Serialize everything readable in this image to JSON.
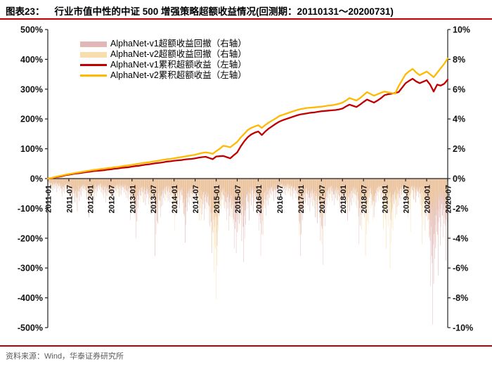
{
  "header": {
    "prefix": "图表23：",
    "title": "行业市值中性的中证 500 增强策略超额收益情况(回测期：20110131～20200731)"
  },
  "footer": {
    "source": "资料来源：Wind，华泰证券研究所"
  },
  "colors": {
    "accent_rule": "#c00000",
    "v1_line": "#c00000",
    "v2_line": "#ffb900",
    "v1_drawdown": "#c97c7c",
    "v2_drawdown": "#f2c36b",
    "axis": "#222222",
    "source_text": "#5a5a5a"
  },
  "chart_data": {
    "type": "combo_bar_line",
    "title": "行业市值中性的中证 500 增强策略超额收益情况(回测期：20110131～20200731)",
    "interval": "monthly",
    "start_month": "2011-01",
    "end_month": "2020-07",
    "grid": false,
    "legend_position": "upper-left-inside",
    "left_axis": {
      "label_format": "percent",
      "min": -500,
      "max": 500,
      "step": 100
    },
    "right_axis": {
      "label_format": "percent",
      "min": -10,
      "max": 10,
      "step": 2
    },
    "x_ticks": [
      "2011-01",
      "2011-07",
      "2012-01",
      "2012-07",
      "2013-01",
      "2013-07",
      "2014-01",
      "2014-07",
      "2015-01",
      "2015-07",
      "2016-01",
      "2016-07",
      "2017-01",
      "2017-07",
      "2018-01",
      "2018-07",
      "2019-01",
      "2019-07",
      "2020-01",
      "2020-07"
    ],
    "series": [
      {
        "name": "AlphaNet-v1超额收益回撤（右轴）",
        "type": "bar",
        "axis": "right",
        "color": "#c97c7c",
        "unit": "percent_drawdown_depth",
        "values": [
          0.6,
          0.8,
          0.7,
          0.9,
          1.2,
          1.0,
          1.1,
          1.8,
          2.2,
          1.5,
          1.2,
          1.4,
          2.6,
          1.5,
          1.2,
          1.0,
          1.3,
          1.6,
          1.9,
          1.4,
          1.2,
          1.1,
          1.3,
          1.5,
          2.8,
          4.0,
          2.0,
          1.6,
          1.8,
          2.4,
          2.2,
          5.2,
          2.6,
          1.8,
          1.5,
          1.6,
          2.2,
          1.8,
          2.0,
          4.3,
          2.2,
          1.8,
          1.6,
          2.0,
          2.4,
          2.8,
          3.2,
          5.0,
          4.5,
          2.5,
          2.0,
          2.8,
          3.5,
          4.7,
          5.0,
          4.2,
          5.6,
          2.8,
          1.8,
          2.2,
          3.5,
          5.2,
          2.5,
          1.8,
          1.5,
          1.3,
          1.2,
          1.0,
          1.1,
          1.2,
          1.4,
          1.8,
          5.2,
          2.8,
          1.8,
          2.2,
          2.6,
          3.0,
          5.8,
          3.2,
          1.8,
          1.5,
          1.8,
          2.0,
          2.4,
          2.8,
          2.2,
          1.8,
          2.0,
          4.4,
          2.6,
          2.2,
          1.8,
          2.6,
          1.6,
          1.4,
          1.8,
          2.2,
          2.8,
          2.4,
          1.8,
          1.5,
          1.6,
          2.0,
          1.4,
          1.6,
          1.8,
          1.6,
          3.5,
          7.2,
          9.8,
          6.5,
          4.5,
          5.5,
          5.0
        ]
      },
      {
        "name": "AlphaNet-v2超额收益回撤（右轴）",
        "type": "bar",
        "axis": "right",
        "color": "#f2c36b",
        "unit": "percent_drawdown_depth",
        "values": [
          0.5,
          0.7,
          0.6,
          0.8,
          1.0,
          0.9,
          1.0,
          1.5,
          1.8,
          1.2,
          1.0,
          1.2,
          2.0,
          1.3,
          1.0,
          0.9,
          1.1,
          1.4,
          1.6,
          1.2,
          1.0,
          1.0,
          1.1,
          1.3,
          2.2,
          2.6,
          1.6,
          1.4,
          1.5,
          2.0,
          1.8,
          3.0,
          2.0,
          1.5,
          1.3,
          1.4,
          3.5,
          2.4,
          1.8,
          2.6,
          1.8,
          1.5,
          1.4,
          2.8,
          2.8,
          2.2,
          3.0,
          6.3,
          8.1,
          3.5,
          1.8,
          2.2,
          2.6,
          3.0,
          3.5,
          2.8,
          3.2,
          2.0,
          1.5,
          1.8,
          2.5,
          3.8,
          2.0,
          1.5,
          1.2,
          1.1,
          1.0,
          0.9,
          1.0,
          1.1,
          1.2,
          1.5,
          3.8,
          2.2,
          1.5,
          1.8,
          2.0,
          2.6,
          4.4,
          2.6,
          1.5,
          1.3,
          1.5,
          1.7,
          2.0,
          2.4,
          1.9,
          1.6,
          1.8,
          3.4,
          2.4,
          5.2,
          2.0,
          2.8,
          1.5,
          1.3,
          4.7,
          3.2,
          6.0,
          2.6,
          1.9,
          1.4,
          1.5,
          3.6,
          1.3,
          1.5,
          1.7,
          4.4,
          2.8,
          3.8,
          4.2,
          3.0,
          2.2,
          2.6,
          2.4
        ]
      },
      {
        "name": "AlphaNet-v1累积超额收益（左轴）",
        "type": "line",
        "axis": "left",
        "color": "#c00000",
        "unit": "percent_cumulative",
        "values": [
          0,
          1,
          4,
          6,
          8,
          11,
          13,
          15,
          17,
          18,
          20,
          22,
          23,
          25,
          26,
          27,
          28,
          30,
          31,
          33,
          34,
          36,
          37,
          38,
          40,
          42,
          43,
          45,
          47,
          48,
          50,
          52,
          53,
          55,
          57,
          58,
          60,
          61,
          62,
          64,
          65,
          66,
          68,
          70,
          72,
          73,
          69,
          65,
          74,
          75,
          76,
          72,
          68,
          78,
          88,
          108,
          125,
          139,
          148,
          154,
          158,
          146,
          158,
          168,
          176,
          184,
          191,
          196,
          200,
          204,
          208,
          212,
          215,
          217,
          219,
          221,
          222,
          224,
          226,
          227,
          228,
          229,
          230,
          232,
          235,
          242,
          248,
          244,
          240,
          248,
          257,
          265,
          260,
          255,
          262,
          270,
          280,
          283,
          285,
          287,
          290,
          305,
          320,
          328,
          335,
          326,
          320,
          325,
          330,
          315,
          292,
          315,
          312,
          318,
          332
        ]
      },
      {
        "name": "AlphaNet-v2累积超额收益（左轴）",
        "type": "line",
        "axis": "left",
        "color": "#ffb900",
        "unit": "percent_cumulative",
        "values": [
          0,
          2,
          5,
          8,
          10,
          13,
          15,
          17,
          19,
          21,
          23,
          25,
          27,
          29,
          30,
          32,
          33,
          35,
          36,
          38,
          39,
          41,
          43,
          44,
          46,
          48,
          50,
          52,
          54,
          55,
          57,
          59,
          61,
          63,
          65,
          66,
          68,
          70,
          72,
          74,
          76,
          78,
          80,
          83,
          86,
          88,
          86,
          83,
          92,
          100,
          110,
          108,
          105,
          114,
          123,
          138,
          150,
          163,
          170,
          175,
          179,
          170,
          180,
          188,
          195,
          202,
          210,
          214,
          218,
          222,
          226,
          230,
          233,
          235,
          237,
          238,
          239,
          240,
          241,
          243,
          245,
          246,
          248,
          251,
          255,
          262,
          270,
          266,
          262,
          270,
          280,
          290,
          284,
          278,
          283,
          288,
          292,
          289,
          287,
          285,
          310,
          330,
          350,
          360,
          368,
          356,
          347,
          353,
          359,
          350,
          340,
          355,
          370,
          385,
          403
        ]
      }
    ]
  }
}
